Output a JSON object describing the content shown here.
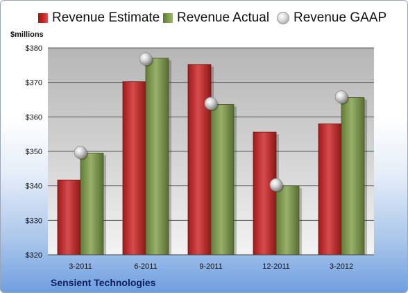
{
  "chart_data": {
    "type": "bar",
    "categories": [
      "3-2011",
      "6-2011",
      "9-2011",
      "12-2011",
      "3-2012"
    ],
    "series": [
      {
        "name": "Revenue Estimate",
        "kind": "bar",
        "color": "#cc1f1f",
        "values": [
          341.7,
          370.2,
          375.2,
          355.6,
          358.0
        ]
      },
      {
        "name": "Revenue Actual",
        "kind": "bar",
        "color": "#7d9c45",
        "values": [
          349.5,
          377.0,
          363.6,
          340.0,
          365.6
        ]
      },
      {
        "name": "Revenue GAAP",
        "kind": "marker",
        "color": "#bfbfbf",
        "values": [
          349.7,
          376.8,
          363.9,
          340.3,
          365.8
        ]
      }
    ],
    "ylabel": "$millions",
    "ylim": [
      320,
      380
    ],
    "yticks": [
      320,
      330,
      340,
      350,
      360,
      370,
      380
    ],
    "ytick_prefix": "$",
    "grid": true,
    "legend_position": "top",
    "footer": "Sensient Technologies"
  }
}
